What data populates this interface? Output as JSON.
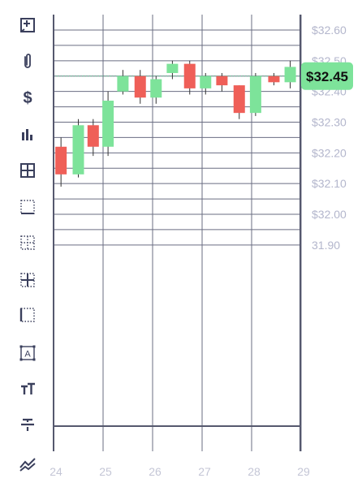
{
  "toolbar": {
    "tools": [
      {
        "name": "add-annotation-icon",
        "icon": "add-box"
      },
      {
        "name": "attachment-icon",
        "icon": "paperclip"
      },
      {
        "name": "dollar-icon",
        "icon": "dollar"
      },
      {
        "name": "bar-chart-icon",
        "icon": "bars"
      },
      {
        "name": "grid-all-icon",
        "icon": "grid-all"
      },
      {
        "name": "grid-bottom-icon",
        "icon": "grid-bottom"
      },
      {
        "name": "grid-none-icon",
        "icon": "grid-none"
      },
      {
        "name": "grid-inner-icon",
        "icon": "grid-inner"
      },
      {
        "name": "grid-left-icon",
        "icon": "grid-left"
      },
      {
        "name": "text-box-icon",
        "icon": "text-box"
      },
      {
        "name": "text-size-icon",
        "icon": "text-size"
      },
      {
        "name": "strikethrough-icon",
        "icon": "strikethrough"
      },
      {
        "name": "trend-chart-icon",
        "icon": "trend"
      }
    ]
  },
  "chart_data": {
    "type": "candlestick",
    "x_ticks": [
      "24",
      "25",
      "26",
      "27",
      "28",
      "29"
    ],
    "y_ticks": [
      "$32.60",
      "$32.50",
      "$32.40",
      "$32.30",
      "$32.20",
      "$32.10",
      "$32.00",
      "31.90"
    ],
    "y_tick_values": [
      32.6,
      32.5,
      32.4,
      32.3,
      32.2,
      32.1,
      32.0,
      31.9
    ],
    "ylim": [
      31.85,
      32.63
    ],
    "xlim": [
      24,
      29
    ],
    "current_price": 32.45,
    "current_price_label": "$32.45",
    "up_color": "#7de39a",
    "down_color": "#ef5f58",
    "grid": true,
    "axis_position": "right",
    "candles": [
      {
        "x": 24.15,
        "open": 32.22,
        "close": 32.13,
        "high": 32.25,
        "low": 32.09
      },
      {
        "x": 24.5,
        "open": 32.13,
        "close": 32.29,
        "high": 32.31,
        "low": 32.12
      },
      {
        "x": 24.8,
        "open": 32.29,
        "close": 32.22,
        "high": 32.31,
        "low": 32.19
      },
      {
        "x": 25.1,
        "open": 32.22,
        "close": 32.37,
        "high": 32.4,
        "low": 32.19
      },
      {
        "x": 25.4,
        "open": 32.4,
        "close": 32.45,
        "high": 32.47,
        "low": 32.39
      },
      {
        "x": 25.75,
        "open": 32.45,
        "close": 32.38,
        "high": 32.47,
        "low": 32.36
      },
      {
        "x": 26.07,
        "open": 32.38,
        "close": 32.44,
        "high": 32.45,
        "low": 32.36
      },
      {
        "x": 26.4,
        "open": 32.46,
        "close": 32.49,
        "high": 32.5,
        "low": 32.44
      },
      {
        "x": 26.75,
        "open": 32.49,
        "close": 32.41,
        "high": 32.5,
        "low": 32.39
      },
      {
        "x": 27.07,
        "open": 32.41,
        "close": 32.45,
        "high": 32.46,
        "low": 32.39
      },
      {
        "x": 27.4,
        "open": 32.45,
        "close": 32.42,
        "high": 32.46,
        "low": 32.4
      },
      {
        "x": 27.75,
        "open": 32.42,
        "close": 32.33,
        "high": 32.42,
        "low": 32.31
      },
      {
        "x": 28.08,
        "open": 32.33,
        "close": 32.45,
        "high": 32.46,
        "low": 32.32
      },
      {
        "x": 28.45,
        "open": 32.45,
        "close": 32.43,
        "high": 32.46,
        "low": 32.42
      },
      {
        "x": 28.78,
        "open": 32.43,
        "close": 32.48,
        "high": 32.5,
        "low": 32.41
      }
    ]
  }
}
